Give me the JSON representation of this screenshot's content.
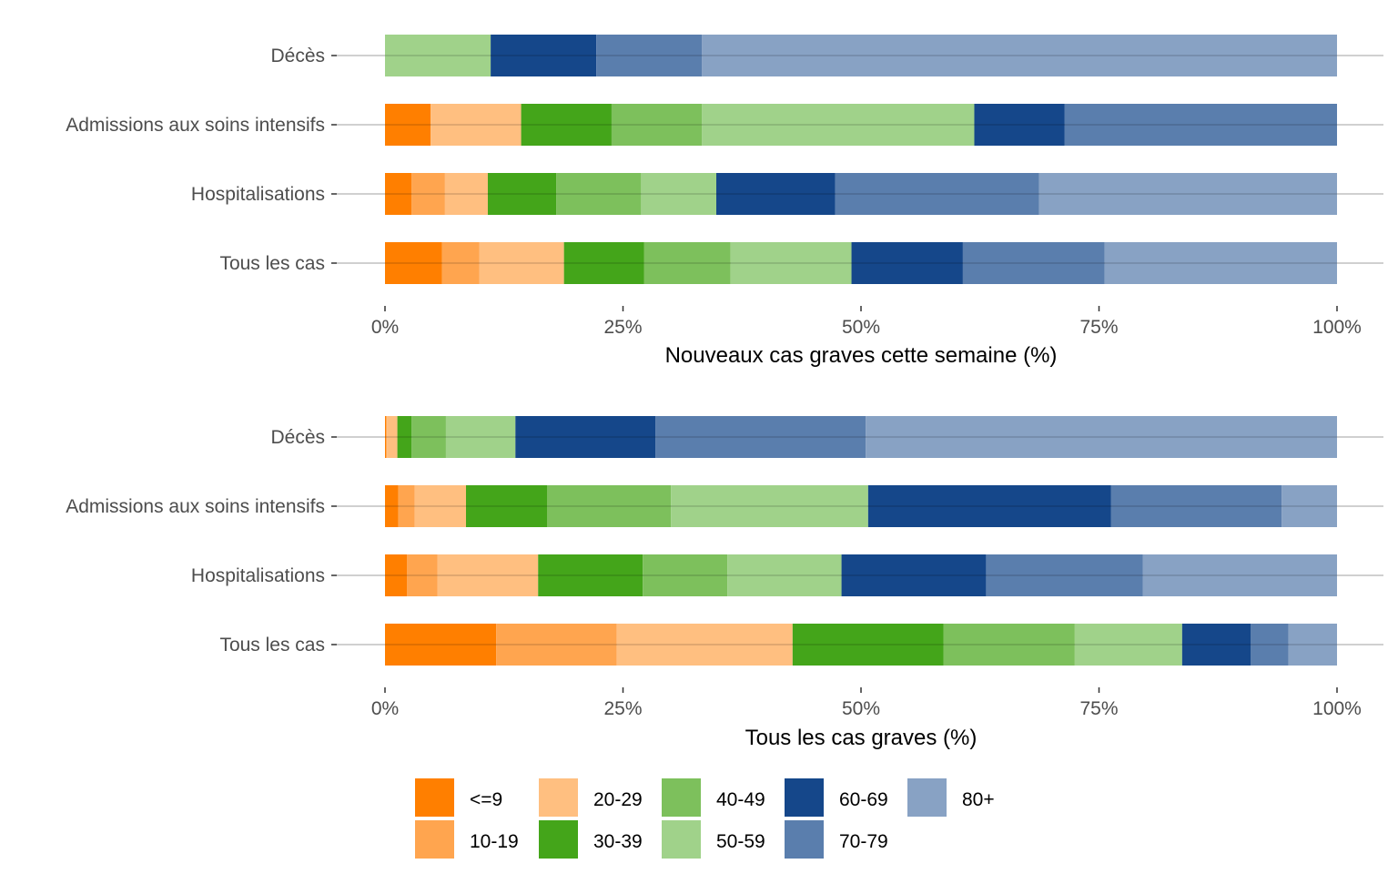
{
  "chart_data": [
    {
      "type": "bar",
      "orientation": "horizontal",
      "stacked": "percent",
      "title": "",
      "xlabel": "Nouveaux cas graves cette semaine (%)",
      "ylabel": "",
      "xlim": [
        0,
        100
      ],
      "x_ticks": [
        "0%",
        "25%",
        "50%",
        "75%",
        "100%"
      ],
      "categories": [
        "Tous les cas",
        "Hospitalisations",
        "Admissions aux soins intensifs",
        "Décès"
      ],
      "series": [
        {
          "name": "<=9",
          "values": [
            6.0,
            2.8,
            4.8,
            0
          ]
        },
        {
          "name": "10-19",
          "values": [
            3.9,
            3.5,
            0,
            0
          ]
        },
        {
          "name": "20-29",
          "values": [
            8.9,
            4.5,
            9.5,
            0
          ]
        },
        {
          "name": "30-39",
          "values": [
            8.4,
            7.2,
            9.5,
            0
          ]
        },
        {
          "name": "40-49",
          "values": [
            9.1,
            8.9,
            9.5,
            0
          ]
        },
        {
          "name": "50-59",
          "values": [
            12.7,
            7.9,
            28.6,
            11.1
          ]
        },
        {
          "name": "60-69",
          "values": [
            11.7,
            12.5,
            9.5,
            11.1
          ]
        },
        {
          "name": "70-79",
          "values": [
            14.9,
            21.4,
            28.6,
            11.1
          ]
        },
        {
          "name": "80+",
          "values": [
            24.4,
            31.3,
            0,
            66.7
          ]
        }
      ],
      "grid": true
    },
    {
      "type": "bar",
      "orientation": "horizontal",
      "stacked": "percent",
      "title": "",
      "xlabel": "Tous les cas graves (%)",
      "ylabel": "",
      "xlim": [
        0,
        100
      ],
      "x_ticks": [
        "0%",
        "25%",
        "50%",
        "75%",
        "100%"
      ],
      "categories": [
        "Tous les cas",
        "Hospitalisations",
        "Admissions aux soins intensifs",
        "Décès"
      ],
      "series": [
        {
          "name": "<=9",
          "values": [
            11.7,
            2.3,
            1.4,
            0.1
          ]
        },
        {
          "name": "10-19",
          "values": [
            12.7,
            3.2,
            1.7,
            0.1
          ]
        },
        {
          "name": "20-29",
          "values": [
            18.5,
            10.6,
            5.4,
            1.1
          ]
        },
        {
          "name": "30-39",
          "values": [
            15.9,
            11.0,
            8.5,
            1.5
          ]
        },
        {
          "name": "40-49",
          "values": [
            13.8,
            8.9,
            13.0,
            3.6
          ]
        },
        {
          "name": "50-59",
          "values": [
            11.3,
            12.0,
            20.7,
            7.3
          ]
        },
        {
          "name": "60-69",
          "values": [
            7.2,
            15.2,
            25.5,
            14.7
          ]
        },
        {
          "name": "70-79",
          "values": [
            4.0,
            16.5,
            17.9,
            22.1
          ]
        },
        {
          "name": "80+",
          "values": [
            5.1,
            20.4,
            5.8,
            49.5
          ]
        }
      ],
      "grid": true
    }
  ],
  "legend": {
    "position": "bottom",
    "items": [
      {
        "label": "<=9",
        "color": "#FF7F00"
      },
      {
        "label": "10-19",
        "color": "#FFA54F"
      },
      {
        "label": "20-29",
        "color": "#FFBF80"
      },
      {
        "label": "30-39",
        "color": "#44A51A"
      },
      {
        "label": "40-49",
        "color": "#7DC05C"
      },
      {
        "label": "50-59",
        "color": "#A0D28A"
      },
      {
        "label": "60-69",
        "color": "#15478A"
      },
      {
        "label": "70-79",
        "color": "#5A7EAD"
      },
      {
        "label": "80+",
        "color": "#88A2C4"
      }
    ]
  }
}
